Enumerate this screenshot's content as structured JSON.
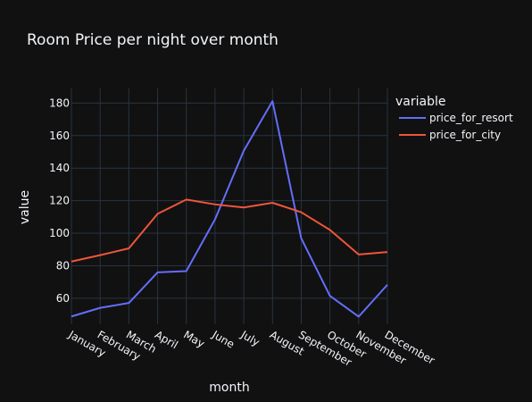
{
  "chart_data": {
    "type": "line",
    "title": "Room Price per night over month",
    "xlabel": "month",
    "ylabel": "value",
    "legend_title": "variable",
    "legend_position": "right",
    "grid": true,
    "categories": [
      "January",
      "February",
      "March",
      "April",
      "May",
      "June",
      "July",
      "August",
      "September",
      "October",
      "November",
      "December"
    ],
    "ylim": [
      44,
      189
    ],
    "yticks": [
      60,
      80,
      100,
      120,
      140,
      160,
      180
    ],
    "series": [
      {
        "name": "price_for_resort",
        "color": "#636efa",
        "values": [
          48.8,
          54.1,
          57.1,
          75.9,
          76.7,
          108.5,
          150.7,
          181.2,
          96.9,
          61.5,
          48.7,
          68.3
        ]
      },
      {
        "name": "price_for_city",
        "color": "#ef553b",
        "values": [
          82.6,
          86.5,
          90.7,
          111.9,
          120.7,
          117.7,
          115.8,
          118.7,
          112.9,
          102.0,
          86.9,
          88.4
        ]
      }
    ]
  }
}
